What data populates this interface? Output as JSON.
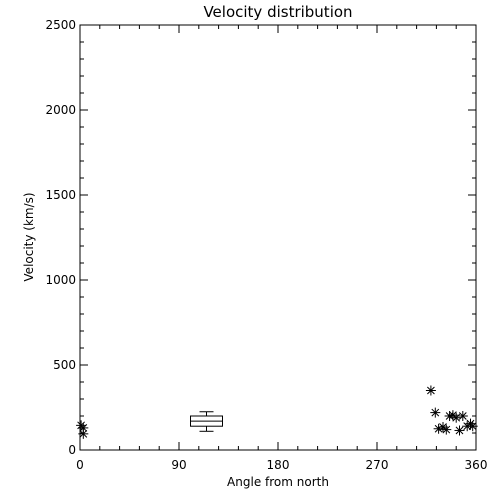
{
  "chart_data": {
    "type": "scatter",
    "title": "Velocity distribution",
    "xlabel": "Angle from north",
    "ylabel": "Velocity (km/s)",
    "xlim": [
      0,
      360
    ],
    "ylim": [
      0,
      2500
    ],
    "xticks": [
      0,
      90,
      180,
      270,
      360
    ],
    "xtick_labels": [
      "0",
      "90",
      "180",
      "270",
      "360"
    ],
    "yticks": [
      0,
      500,
      1000,
      1500,
      2000,
      2500
    ],
    "ytick_labels": [
      "0",
      "500",
      "1000",
      "1500",
      "2000",
      "2500"
    ],
    "grid": false,
    "colors": {
      "ink": "#000000",
      "background": "#ffffff"
    },
    "points": [
      {
        "x": 1,
        "y": 145
      },
      {
        "x": 3,
        "y": 130
      },
      {
        "x": 3,
        "y": 95
      },
      {
        "x": 319,
        "y": 350
      },
      {
        "x": 323,
        "y": 220
      },
      {
        "x": 326,
        "y": 125
      },
      {
        "x": 330,
        "y": 135
      },
      {
        "x": 333,
        "y": 120
      },
      {
        "x": 336,
        "y": 200
      },
      {
        "x": 339,
        "y": 205
      },
      {
        "x": 342,
        "y": 190
      },
      {
        "x": 345,
        "y": 115
      },
      {
        "x": 348,
        "y": 200
      },
      {
        "x": 352,
        "y": 140
      },
      {
        "x": 355,
        "y": 155
      },
      {
        "x": 357,
        "y": 140
      }
    ],
    "boxplot": {
      "x": 115,
      "min": 110,
      "q1": 140,
      "median": 170,
      "q3": 200,
      "max": 225
    }
  }
}
